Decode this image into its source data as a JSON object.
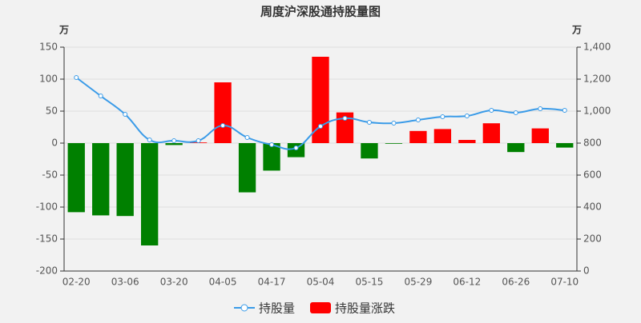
{
  "chart_data": {
    "type": "bar-line",
    "title": "周度沪深股通持股量图",
    "y_unit": "万",
    "y2_unit": "万",
    "categories": [
      "02-20",
      null,
      "03-06",
      null,
      "03-20",
      null,
      "04-05",
      null,
      "04-17",
      null,
      "05-04",
      null,
      "05-15",
      null,
      "05-29",
      null,
      "06-12",
      null,
      "06-26",
      null,
      "07-10"
    ],
    "series": [
      {
        "name": "持股量",
        "type": "line",
        "axis": "y2",
        "color": "#3a9be8",
        "values": [
          1210,
          1095,
          980,
          820,
          815,
          815,
          910,
          835,
          790,
          770,
          905,
          955,
          930,
          925,
          945,
          965,
          970,
          1005,
          990,
          1015,
          1005
        ]
      },
      {
        "name": "持股量涨跌",
        "type": "bar",
        "axis": "y",
        "color": "#ff0000",
        "negative_color": "#008000",
        "values": [
          -108,
          -113,
          -114,
          -160,
          -3,
          1,
          95,
          -77,
          -43,
          -22,
          135,
          48,
          -24,
          -1,
          19,
          22,
          5,
          31,
          -14,
          23,
          -7
        ]
      }
    ],
    "ylim": [
      -200,
      150
    ],
    "yticks": [
      -200,
      -150,
      -100,
      -50,
      0,
      50,
      100,
      150
    ],
    "y2lim": [
      0,
      1400
    ],
    "y2ticks": [
      0,
      200,
      400,
      600,
      800,
      {
        "value": 1000,
        "label": "1,000"
      },
      {
        "value": 1200,
        "label": "1,200"
      },
      {
        "value": 1400,
        "label": "1,400"
      }
    ],
    "grid": true
  }
}
